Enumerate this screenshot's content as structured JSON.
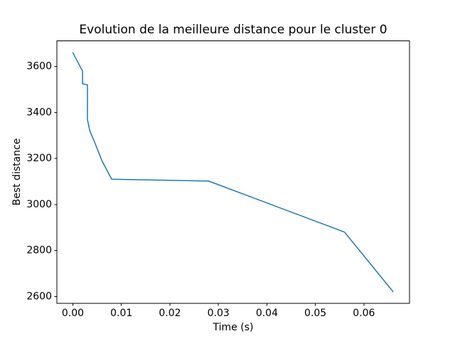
{
  "figure": {
    "background": "#ffffff",
    "text_color": "#000000"
  },
  "chart_data": {
    "type": "line",
    "title": "Evolution de la meilleure distance pour le cluster 0",
    "xlabel": "Time (s)",
    "ylabel": "Best distance",
    "x_tick_values": [
      0.0,
      0.01,
      0.02,
      0.03,
      0.04,
      0.05,
      0.06
    ],
    "x_tick_labels": [
      "0.00",
      "0.01",
      "0.02",
      "0.03",
      "0.04",
      "0.05",
      "0.06"
    ],
    "y_tick_values": [
      2600,
      2800,
      3000,
      3200,
      3400,
      3600
    ],
    "y_tick_labels": [
      "2600",
      "2800",
      "3000",
      "3200",
      "3400",
      "3600"
    ],
    "xlim": [
      -0.0033,
      0.0694
    ],
    "ylim": [
      2570,
      3712
    ],
    "grid": false,
    "legend": "none",
    "line_color": "#1f77b4",
    "series": [
      {
        "points": [
          [
            0.0,
            3660
          ],
          [
            0.002,
            3580
          ],
          [
            0.002,
            3525
          ],
          [
            0.003,
            3521
          ],
          [
            0.003,
            3370
          ],
          [
            0.0035,
            3320
          ],
          [
            0.0045,
            3270
          ],
          [
            0.006,
            3190
          ],
          [
            0.008,
            3110
          ],
          [
            0.028,
            3102
          ],
          [
            0.056,
            2880
          ],
          [
            0.066,
            2621
          ]
        ]
      }
    ]
  }
}
